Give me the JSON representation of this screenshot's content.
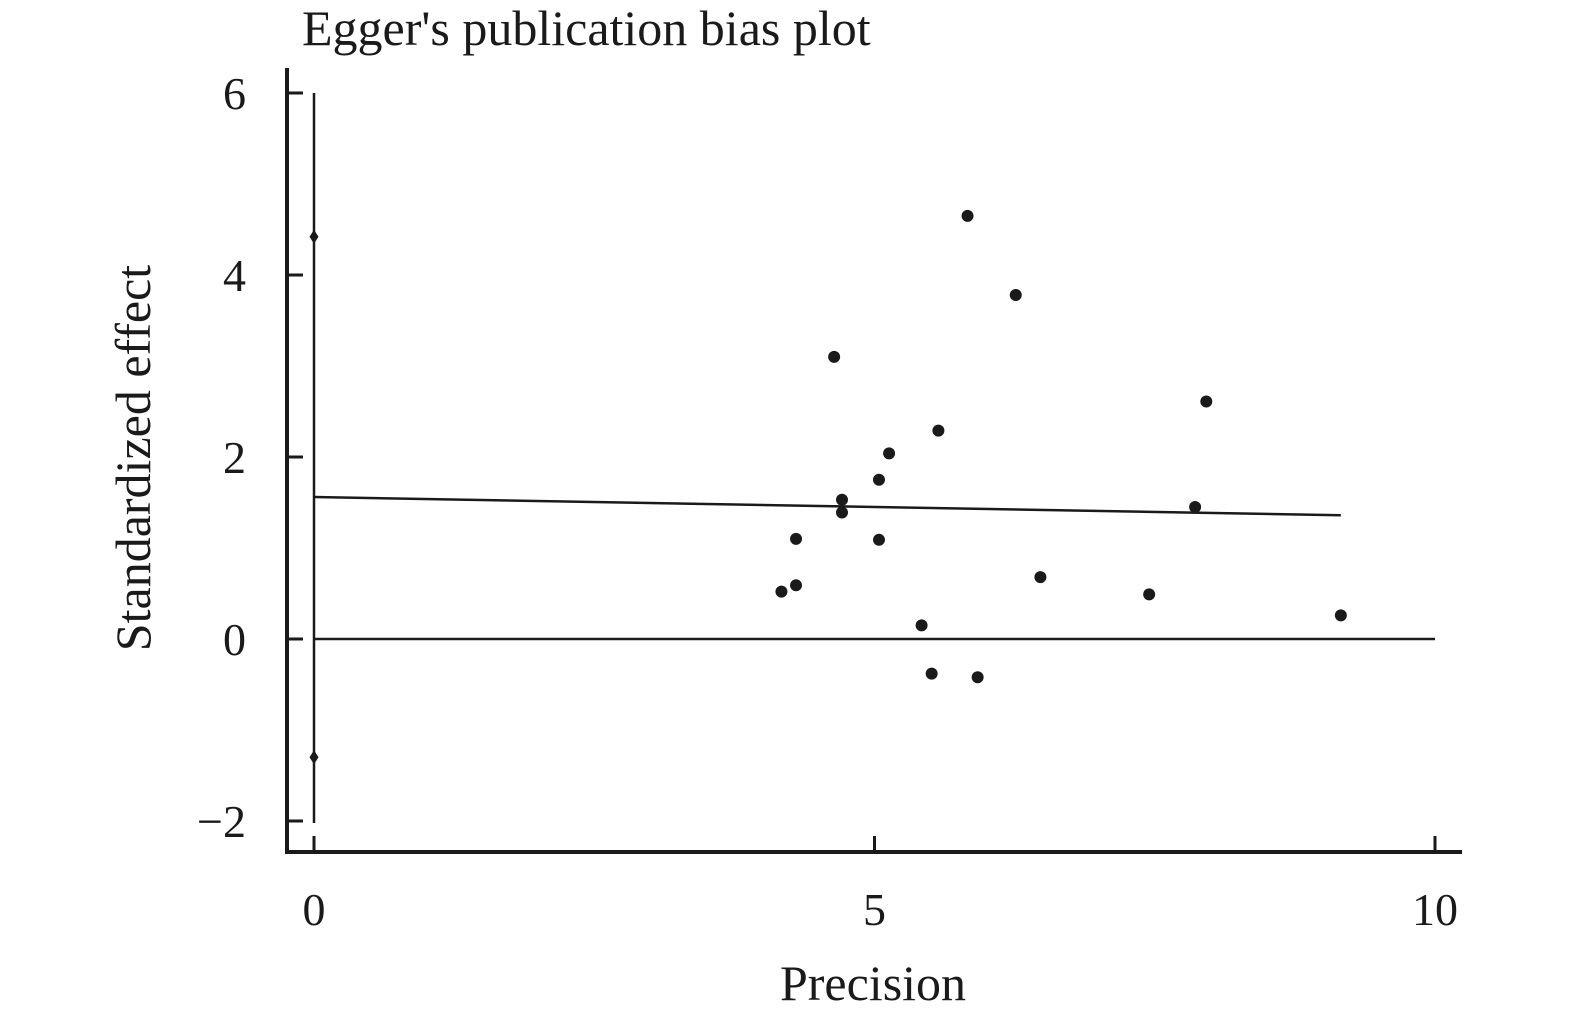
{
  "chart_data": {
    "type": "scatter",
    "title": "Egger's publication bias plot",
    "xlabel": "Precision",
    "ylabel": "Standardized effect",
    "xlim": [
      0,
      10
    ],
    "ylim": [
      -2,
      6
    ],
    "x_ticks": [
      {
        "value": 0,
        "label": "0"
      },
      {
        "value": 5,
        "label": "5"
      },
      {
        "value": 10,
        "label": "10"
      }
    ],
    "y_ticks": [
      {
        "value": -2,
        "label": "−2"
      },
      {
        "value": 0,
        "label": "0"
      },
      {
        "value": 2,
        "label": "2"
      },
      {
        "value": 4,
        "label": "4"
      },
      {
        "value": 6,
        "label": "6"
      }
    ],
    "grid": false,
    "points": [
      {
        "x": 5.83,
        "y": 4.65
      },
      {
        "x": 6.26,
        "y": 3.78
      },
      {
        "x": 4.64,
        "y": 3.1
      },
      {
        "x": 7.96,
        "y": 2.61
      },
      {
        "x": 5.57,
        "y": 2.29
      },
      {
        "x": 5.13,
        "y": 2.04
      },
      {
        "x": 5.04,
        "y": 1.75
      },
      {
        "x": 4.71,
        "y": 1.53
      },
      {
        "x": 4.71,
        "y": 1.39
      },
      {
        "x": 7.86,
        "y": 1.45
      },
      {
        "x": 4.3,
        "y": 1.1
      },
      {
        "x": 5.04,
        "y": 1.09
      },
      {
        "x": 6.48,
        "y": 0.68
      },
      {
        "x": 4.3,
        "y": 0.59
      },
      {
        "x": 4.17,
        "y": 0.52
      },
      {
        "x": 7.45,
        "y": 0.49
      },
      {
        "x": 9.16,
        "y": 0.26
      },
      {
        "x": 5.42,
        "y": 0.15
      },
      {
        "x": 5.51,
        "y": -0.38
      },
      {
        "x": 5.92,
        "y": -0.42
      }
    ],
    "regression_line": {
      "x": [
        0,
        9.16
      ],
      "y": [
        1.56,
        1.36
      ]
    },
    "reference_line": {
      "y": 0,
      "x": [
        0,
        10.0
      ]
    },
    "intercept_ci": {
      "x": 0,
      "low": -1.3,
      "high": 4.42,
      "line_low": -2.0,
      "line_high": 6.0
    },
    "colors": {
      "marker": "#1a1a1a",
      "line": "#1a1a1a",
      "axis": "#1a1a1a"
    }
  }
}
